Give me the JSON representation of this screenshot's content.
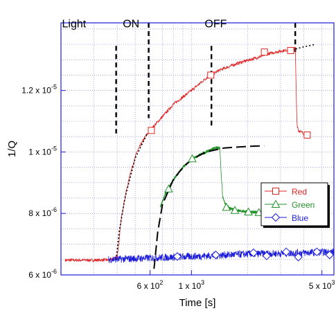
{
  "chart_data": {
    "type": "line",
    "title": "",
    "xlabel": "Time [s]",
    "ylabel": "1/Q",
    "x_scale": "log",
    "xlim": [
      200,
      5800
    ],
    "ylim": [
      6e-06,
      1.42e-05
    ],
    "grid": true,
    "grid_style": "dotted",
    "legend_position": "right-middle",
    "x_ticks": [
      {
        "value": 600,
        "label_base": "6 x 10",
        "label_exp": "2"
      },
      {
        "value": 1000,
        "label_base": "1 x 10",
        "label_exp": "3"
      },
      {
        "value": 5000,
        "label_base": "5 x 10",
        "label_exp": "3"
      }
    ],
    "y_ticks": [
      {
        "value": 6e-06,
        "label_base": "6 x 10",
        "label_exp": "-6"
      },
      {
        "value": 8e-06,
        "label_base": "8 x 10",
        "label_exp": "-6"
      },
      {
        "value": 1e-05,
        "label_base": "1 x 10",
        "label_exp": "-5"
      },
      {
        "value": 1.2e-05,
        "label_base": "1.2 x 10",
        "label_exp": "-5"
      }
    ],
    "annotations": [
      {
        "text": "Light",
        "x": 235,
        "y": 1.405e-05
      },
      {
        "text": "ON",
        "x": 475,
        "y": 1.405e-05
      },
      {
        "text": "OFF",
        "x": 1350,
        "y": 1.405e-05
      }
    ],
    "light_lines": [
      {
        "x": 395,
        "y_top": 1.345e-05,
        "y_bottom": 1.06e-05,
        "label": "Red ON"
      },
      {
        "x": 590,
        "y_top": 1.42e-05,
        "y_bottom": 1.11e-05,
        "label": "Green ON"
      },
      {
        "x": 1280,
        "y_top": 1.345e-05,
        "y_bottom": 1.08e-05,
        "label": "Red OFF"
      },
      {
        "x": 3600,
        "y_top": 1.42e-05,
        "y_bottom": 1.325e-05,
        "label": "Green OFF"
      }
    ],
    "series": [
      {
        "name": "Red",
        "color": "#e02020",
        "marker": "square",
        "values": [
          [
            210,
            6.48e-06
          ],
          [
            300,
            6.48e-06
          ],
          [
            370,
            6.49e-06
          ],
          [
            400,
            6.6e-06
          ],
          [
            410,
            7.1e-06
          ],
          [
            420,
            7.8e-06
          ],
          [
            440,
            8.5e-06
          ],
          [
            470,
            9.3e-06
          ],
          [
            510,
            1e-05
          ],
          [
            560,
            1.045e-05
          ],
          [
            600,
            1.07e-05
          ],
          [
            700,
            1.115e-05
          ],
          [
            800,
            1.155e-05
          ],
          [
            1000,
            1.2e-05
          ],
          [
            1200,
            1.24e-05
          ],
          [
            1400,
            1.265e-05
          ],
          [
            1800,
            1.29e-05
          ],
          [
            2200,
            1.305e-05
          ],
          [
            2600,
            1.32e-05
          ],
          [
            3000,
            1.328e-05
          ],
          [
            3500,
            1.335e-05
          ],
          [
            3600,
            1.338e-05
          ],
          [
            3640,
            1.2e-05
          ],
          [
            3680,
            1.09e-05
          ],
          [
            3750,
            1.07e-05
          ],
          [
            4000,
            1.06e-05
          ],
          [
            4300,
            1.055e-05
          ]
        ],
        "marker_points": [
          [
            610,
            1.07e-05
          ],
          [
            1270,
            1.25e-05
          ],
          [
            2460,
            1.325e-05
          ],
          [
            3400,
            1.33e-05
          ],
          [
            4170,
            1.055e-05
          ]
        ]
      },
      {
        "name": "Green",
        "color": "#22922a",
        "marker": "triangle",
        "values": [
          [
            680,
            8.2e-06
          ],
          [
            720,
            8.6e-06
          ],
          [
            800,
            9.1e-06
          ],
          [
            900,
            9.5e-06
          ],
          [
            1000,
            9.75e-06
          ],
          [
            1100,
            9.9e-06
          ],
          [
            1200,
            1e-05
          ],
          [
            1300,
            1.01e-05
          ],
          [
            1420,
            1.015e-05
          ],
          [
            1440,
            9.4e-06
          ],
          [
            1470,
            8.55e-06
          ],
          [
            1530,
            8.25e-06
          ],
          [
            1700,
            8.1e-06
          ],
          [
            2000,
            8.05e-06
          ],
          [
            2400,
            8.03e-06
          ]
        ],
        "marker_points": [
          [
            755,
            8.8e-06
          ],
          [
            1010,
            9.78e-06
          ],
          [
            1540,
            8.2e-06
          ],
          [
            1710,
            8.1e-06
          ],
          [
            2020,
            8.05e-06
          ],
          [
            2300,
            8.03e-06
          ]
        ]
      },
      {
        "name": "Blue",
        "color": "#1a1adc",
        "marker": "diamond",
        "values": [
          [
            360,
            6.5e-06
          ],
          [
            600,
            6.55e-06
          ],
          [
            1000,
            6.6e-06
          ],
          [
            2000,
            6.68e-06
          ],
          [
            3000,
            6.7e-06
          ],
          [
            4000,
            6.72e-06
          ],
          [
            5800,
            6.75e-06
          ]
        ],
        "marker_points": [
          [
            840,
            6.6e-06
          ],
          [
            1350,
            6.65e-06
          ],
          [
            2150,
            6.72e-06
          ],
          [
            2530,
            6.62e-06
          ],
          [
            3220,
            6.75e-06
          ],
          [
            3740,
            6.58e-06
          ],
          [
            4700,
            6.75e-06
          ],
          [
            5500,
            6.65e-06
          ]
        ]
      }
    ],
    "fits": [
      {
        "name": "red-fit",
        "color": "#000000",
        "dash": "2,3",
        "values": [
          [
            395,
            6.5e-06
          ],
          [
            410,
            7.4e-06
          ],
          [
            440,
            8.5e-06
          ],
          [
            500,
            9.8e-06
          ],
          [
            580,
            1.06e-05
          ]
        ]
      },
      {
        "name": "red-fit-extension",
        "color": "#000000",
        "dash": "2,3",
        "values": [
          [
            3620,
            1.335e-05
          ],
          [
            4000,
            1.342e-05
          ],
          [
            4600,
            1.35e-05
          ]
        ]
      },
      {
        "name": "green-fit",
        "color": "#000000",
        "dash": "14,6",
        "values": [
          [
            630,
            6.2e-06
          ],
          [
            660,
            7.4e-06
          ],
          [
            700,
            8.3e-06
          ],
          [
            800,
            9.1e-06
          ],
          [
            900,
            9.5e-06
          ],
          [
            1000,
            9.75e-06
          ],
          [
            1200,
            1e-05
          ],
          [
            1500,
            1.013e-05
          ],
          [
            2000,
            1.018e-05
          ],
          [
            2450,
            1.02e-05
          ]
        ]
      }
    ]
  }
}
